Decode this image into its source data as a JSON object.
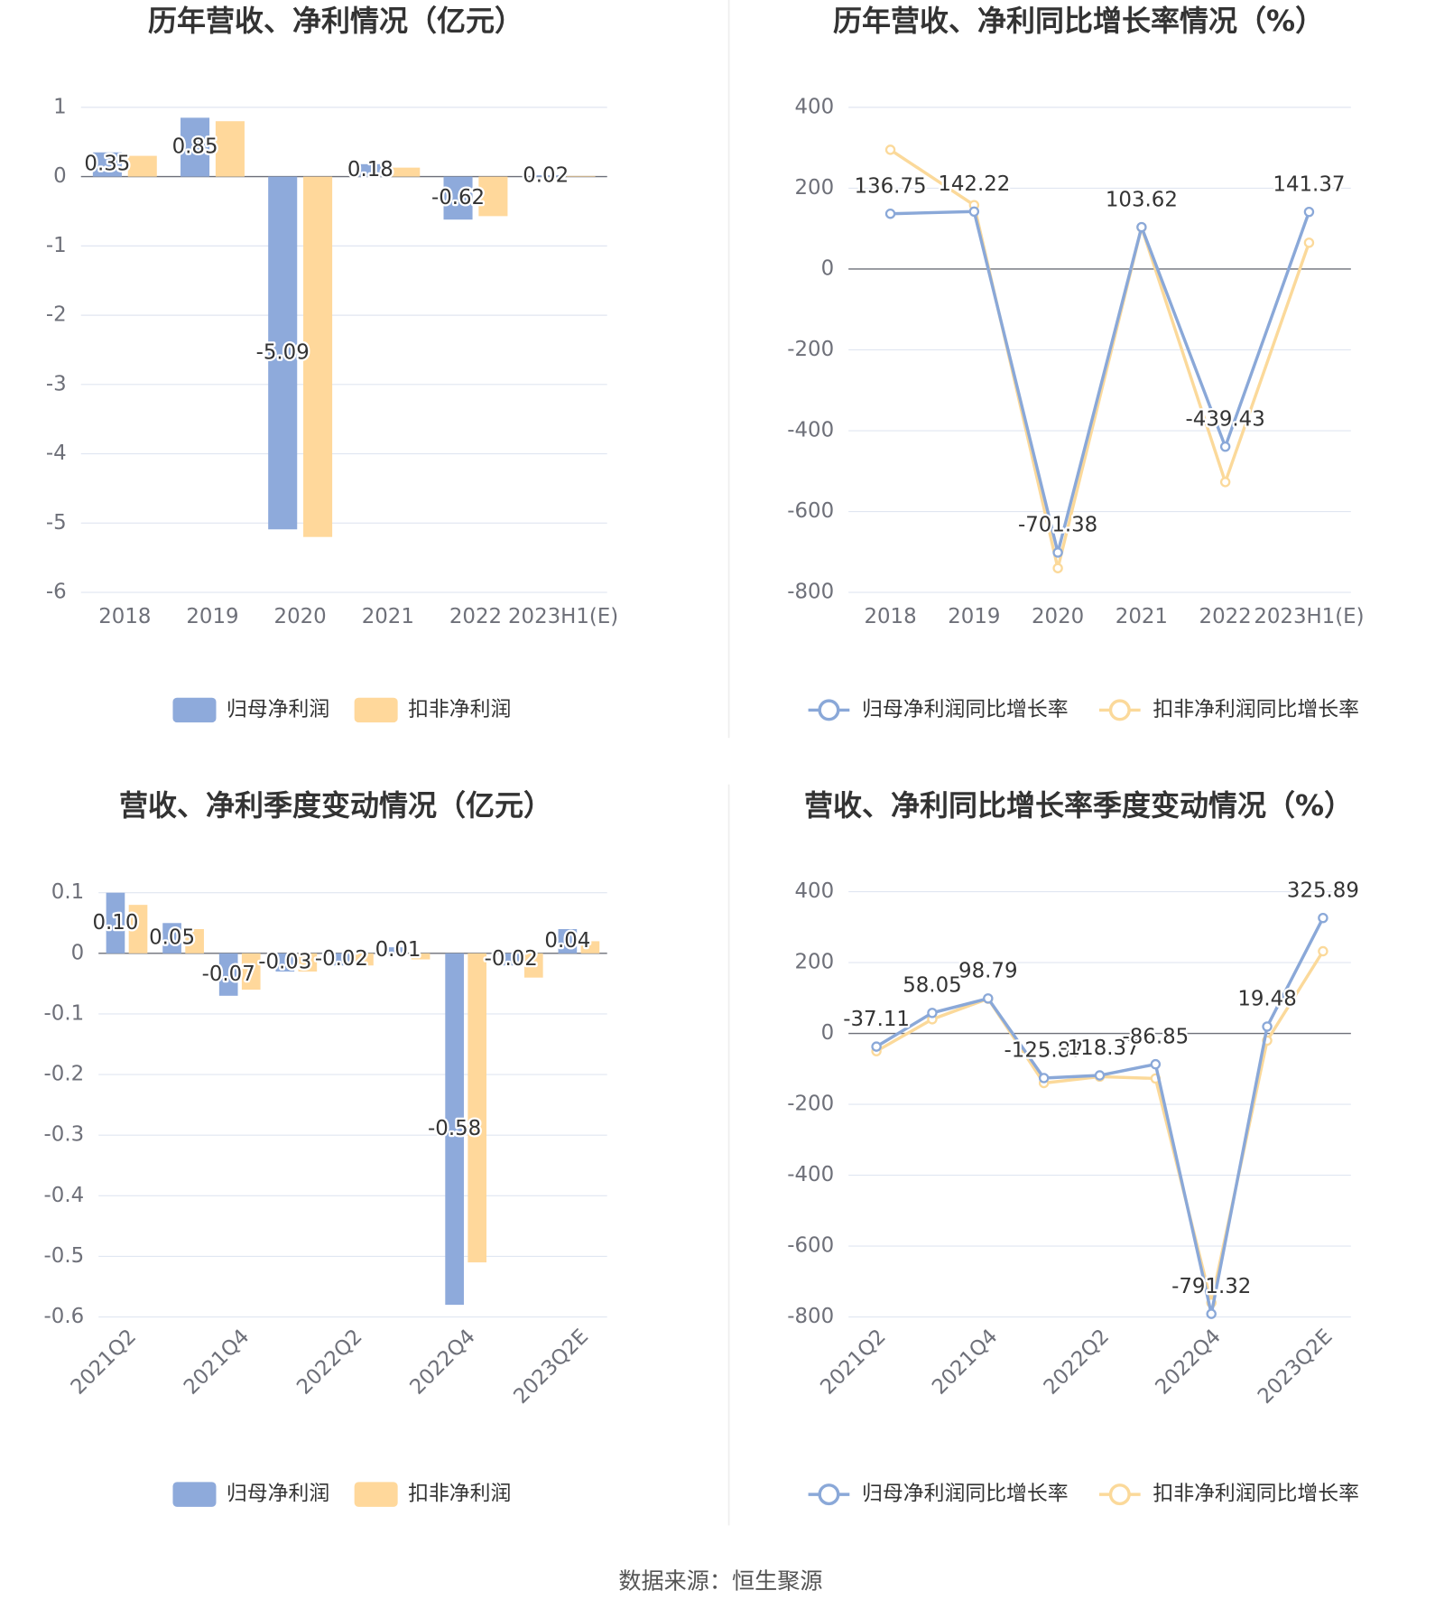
{
  "chart_data": [
    {
      "type": "bar",
      "title": "历年营收、净利情况（亿元）",
      "categories": [
        "2018",
        "2019",
        "2020",
        "2021",
        "2022",
        "2023H1(E)"
      ],
      "series": [
        {
          "name": "归母净利润",
          "color": "#8eaadb",
          "values": [
            0.35,
            0.85,
            -5.09,
            0.18,
            -0.62,
            0.02
          ]
        },
        {
          "name": "扣非净利润",
          "color": "#ffd89b",
          "values": [
            0.3,
            0.8,
            -5.2,
            0.13,
            -0.57,
            0.01
          ]
        }
      ],
      "ylim": [
        -6,
        1
      ],
      "yticks": [
        -6,
        -5,
        -4,
        -3,
        -2,
        -1,
        0,
        1
      ],
      "grid": true,
      "legend": "bottom"
    },
    {
      "type": "line",
      "title": "历年营收、净利同比增长率情况（%）",
      "categories": [
        "2018",
        "2019",
        "2020",
        "2021",
        "2022",
        "2023H1(E)"
      ],
      "series": [
        {
          "name": "归母净利润同比增长率",
          "color": "#8aa8d8",
          "values": [
            136.75,
            142.22,
            -701.38,
            103.62,
            -439.43,
            141.37
          ]
        },
        {
          "name": "扣非净利润同比增长率",
          "color": "#fbd99a",
          "values": [
            295,
            158,
            -740,
            103,
            -527,
            65
          ]
        }
      ],
      "ylim": [
        -800,
        400
      ],
      "yticks": [
        -800,
        -600,
        -400,
        -200,
        0,
        200,
        400
      ],
      "grid": true,
      "legend": "bottom"
    },
    {
      "type": "bar",
      "title": "营收、净利季度变动情况（亿元）",
      "categories": [
        "2021Q2",
        null,
        "2021Q4",
        null,
        "2022Q2",
        null,
        "2022Q4",
        null,
        "2023Q2E"
      ],
      "series": [
        {
          "name": "归母净利润",
          "color": "#8eaadb",
          "values": [
            0.1,
            0.05,
            -0.07,
            -0.03,
            -0.02,
            0.01,
            -0.58,
            -0.02,
            0.04
          ],
          "value_labels": [
            "0.10",
            "0.05",
            "-0.07",
            "-0.03",
            "-0.02",
            "0.01",
            "-0.58",
            "-0.02",
            "0.04"
          ]
        },
        {
          "name": "扣非净利润",
          "color": "#ffd89b",
          "values": [
            0.08,
            0.04,
            -0.06,
            -0.03,
            -0.02,
            -0.01,
            -0.51,
            -0.04,
            0.02
          ]
        }
      ],
      "ylim": [
        -0.6,
        0.1
      ],
      "yticks": [
        -0.6,
        -0.5,
        -0.4,
        -0.3,
        -0.2,
        -0.1,
        0,
        0.1
      ],
      "grid": true,
      "legend": "bottom"
    },
    {
      "type": "line",
      "title": "营收、净利同比增长率季度变动情况（%）",
      "categories": [
        "2021Q2",
        null,
        "2021Q4",
        null,
        "2022Q2",
        null,
        "2022Q4",
        null,
        "2023Q2E"
      ],
      "series": [
        {
          "name": "归母净利润同比增长率",
          "color": "#8aa8d8",
          "values": [
            -37.11,
            58.05,
            98.79,
            -125.87,
            -118.37,
            -86.85,
            -791.32,
            19.48,
            325.89
          ]
        },
        {
          "name": "扣非净利润同比增长率",
          "color": "#fbd99a",
          "values": [
            -50,
            40,
            98,
            -140,
            -122,
            -127,
            -760,
            -20,
            232
          ]
        }
      ],
      "ylim": [
        -800,
        400
      ],
      "yticks": [
        -800,
        -600,
        -400,
        -200,
        0,
        200,
        400
      ],
      "grid": true,
      "legend": "bottom"
    }
  ],
  "source": "数据来源：恒生聚源"
}
